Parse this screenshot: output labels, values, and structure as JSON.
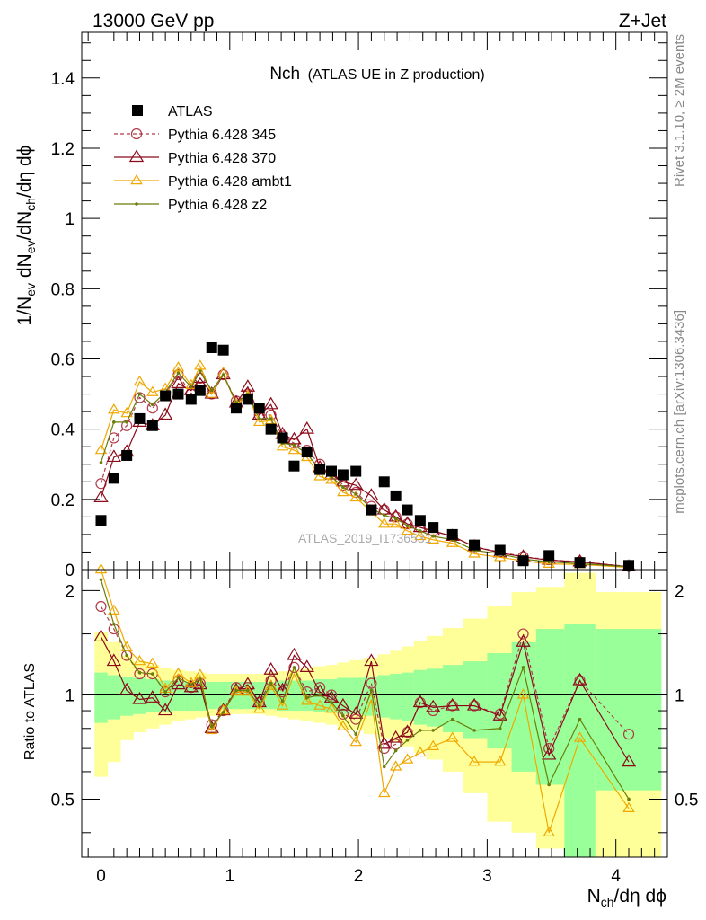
{
  "header": {
    "left": "13000 GeV pp",
    "right": "Z+Jet"
  },
  "side_labels": {
    "rivet": "Rivet 3.1.10, ≥ 2M events",
    "mcplots": "mcplots.cern.ch [arXiv:1306.3436]"
  },
  "watermark": "ATLAS_2019_I1736531",
  "colors": {
    "atlas": "#000000",
    "p345": "#b03a48",
    "p370": "#8b0a1a",
    "ambt1": "#f0a800",
    "z2": "#6b7d0a",
    "band_inner": "#99ff99",
    "band_outer": "#ffff99"
  },
  "chart_data": [
    {
      "type": "scatter",
      "title_main": "Nch",
      "title_sub": "(ATLAS UE in Z production)",
      "ylabel_main": "1/N",
      "ylabel_sub1": "ev",
      "ylabel_mid1": " dN",
      "ylabel_sub2": "ev",
      "ylabel_mid2": "/dN",
      "ylabel_sub3": "ch",
      "ylabel_tail": "/dη dϕ",
      "xlim": [
        -0.15,
        4.4
      ],
      "ylim": [
        0,
        1.53
      ],
      "xticks": [
        "0",
        "1",
        "2",
        "3",
        "4"
      ],
      "yticks": [
        "0",
        "0.2",
        "0.4",
        "0.6",
        "0.8",
        "1",
        "1.2",
        "1.4"
      ],
      "legend_position": "top-left",
      "legend": [
        "ATLAS",
        "Pythia 6.428 345",
        "Pythia 6.428 370",
        "Pythia 6.428 ambt1",
        "Pythia 6.428 z2"
      ],
      "x": [
        0.0,
        0.1,
        0.2,
        0.3,
        0.4,
        0.5,
        0.6,
        0.7,
        0.77,
        0.86,
        0.95,
        1.05,
        1.14,
        1.23,
        1.32,
        1.41,
        1.5,
        1.6,
        1.7,
        1.79,
        1.88,
        1.98,
        2.1,
        2.2,
        2.29,
        2.38,
        2.48,
        2.58,
        2.73,
        2.9,
        3.1,
        3.28,
        3.48,
        3.72,
        4.1
      ],
      "series": [
        {
          "name": "ATLAS",
          "values": [
            0.14,
            0.26,
            0.325,
            0.43,
            0.41,
            0.495,
            0.5,
            0.485,
            0.51,
            0.632,
            0.625,
            0.46,
            0.485,
            0.46,
            0.4,
            0.375,
            0.295,
            0.335,
            0.285,
            0.28,
            0.27,
            0.28,
            0.17,
            0.25,
            0.21,
            0.17,
            0.14,
            0.12,
            0.1,
            0.07,
            0.055,
            0.025,
            0.04,
            0.02,
            0.012
          ]
        },
        {
          "name": "Pythia 6.428 345",
          "values": [
            0.245,
            0.375,
            0.41,
            0.49,
            0.46,
            0.5,
            0.555,
            0.5,
            0.545,
            0.5,
            0.555,
            0.48,
            0.5,
            0.44,
            0.44,
            0.38,
            0.36,
            0.34,
            0.3,
            0.28,
            0.24,
            0.22,
            0.18,
            0.17,
            0.15,
            0.13,
            0.12,
            0.11,
            0.095,
            0.065,
            0.05,
            0.037,
            0.028,
            0.022,
            0.009
          ]
        },
        {
          "name": "Pythia 6.428 370",
          "values": [
            0.205,
            0.32,
            0.335,
            0.42,
            0.41,
            0.44,
            0.53,
            0.51,
            0.545,
            0.5,
            0.555,
            0.475,
            0.52,
            0.44,
            0.47,
            0.385,
            0.37,
            0.4,
            0.29,
            0.27,
            0.25,
            0.24,
            0.21,
            0.17,
            0.15,
            0.13,
            0.12,
            0.11,
            0.095,
            0.065,
            0.048,
            0.036,
            0.027,
            0.022,
            0.008
          ]
        },
        {
          "name": "Pythia 6.428 ambt1",
          "values": [
            0.34,
            0.455,
            0.445,
            0.535,
            0.505,
            0.515,
            0.575,
            0.525,
            0.58,
            0.5,
            0.56,
            0.47,
            0.495,
            0.42,
            0.425,
            0.35,
            0.34,
            0.32,
            0.265,
            0.255,
            0.22,
            0.205,
            0.165,
            0.13,
            0.13,
            0.11,
            0.095,
            0.085,
            0.075,
            0.045,
            0.035,
            0.025,
            0.016,
            0.015,
            0.006
          ]
        },
        {
          "name": "Pythia 6.428 z2",
          "values": [
            0.305,
            0.42,
            0.42,
            0.5,
            0.47,
            0.505,
            0.56,
            0.52,
            0.565,
            0.51,
            0.555,
            0.475,
            0.5,
            0.43,
            0.43,
            0.36,
            0.355,
            0.33,
            0.285,
            0.265,
            0.235,
            0.215,
            0.175,
            0.155,
            0.145,
            0.125,
            0.11,
            0.095,
            0.085,
            0.055,
            0.045,
            0.03,
            0.022,
            0.017,
            0.008
          ]
        }
      ]
    },
    {
      "type": "line",
      "ylabel": "Ratio to ATLAS",
      "xlabel_main": "N",
      "xlabel_sub": "ch",
      "xlabel_tail": "/dη dϕ",
      "xlim": [
        -0.15,
        4.4
      ],
      "ylim": [
        0.34,
        2.3
      ],
      "xticks": [
        "0",
        "1",
        "2",
        "3",
        "4"
      ],
      "yticks": [
        "0.5",
        "1",
        "2"
      ],
      "reference_line": 1,
      "x": [
        0.0,
        0.1,
        0.2,
        0.3,
        0.4,
        0.5,
        0.6,
        0.7,
        0.77,
        0.86,
        0.95,
        1.05,
        1.14,
        1.23,
        1.32,
        1.41,
        1.5,
        1.6,
        1.7,
        1.79,
        1.88,
        1.98,
        2.1,
        2.2,
        2.29,
        2.38,
        2.48,
        2.58,
        2.73,
        2.9,
        3.1,
        3.28,
        3.48,
        3.72,
        4.1
      ],
      "bands": {
        "edges": [
          -0.05,
          0.05,
          0.15,
          0.25,
          0.35,
          0.45,
          0.55,
          0.65,
          0.735,
          0.815,
          0.905,
          1.0,
          1.095,
          1.185,
          1.275,
          1.365,
          1.455,
          1.55,
          1.65,
          1.745,
          1.835,
          1.93,
          2.04,
          2.15,
          2.245,
          2.335,
          2.43,
          2.53,
          2.655,
          2.815,
          3.0,
          3.19,
          3.38,
          3.6,
          3.84,
          4.35
        ],
        "inner_lo": [
          0.83,
          0.85,
          0.87,
          0.88,
          0.89,
          0.89,
          0.9,
          0.9,
          0.9,
          0.91,
          0.91,
          0.91,
          0.91,
          0.91,
          0.91,
          0.9,
          0.9,
          0.9,
          0.89,
          0.89,
          0.88,
          0.88,
          0.87,
          0.86,
          0.85,
          0.84,
          0.82,
          0.81,
          0.78,
          0.75,
          0.7,
          0.6,
          0.55,
          0.34,
          0.53
        ],
        "inner_hi": [
          1.16,
          1.14,
          1.13,
          1.12,
          1.11,
          1.1,
          1.1,
          1.09,
          1.09,
          1.09,
          1.09,
          1.09,
          1.09,
          1.09,
          1.09,
          1.1,
          1.1,
          1.1,
          1.11,
          1.11,
          1.12,
          1.12,
          1.13,
          1.14,
          1.15,
          1.16,
          1.18,
          1.19,
          1.22,
          1.25,
          1.32,
          1.42,
          1.55,
          1.6,
          1.55
        ],
        "outer_lo": [
          0.58,
          0.64,
          0.74,
          0.78,
          0.8,
          0.82,
          0.84,
          0.85,
          0.86,
          0.87,
          0.87,
          0.88,
          0.88,
          0.88,
          0.87,
          0.86,
          0.85,
          0.84,
          0.83,
          0.82,
          0.8,
          0.79,
          0.77,
          0.75,
          0.73,
          0.71,
          0.68,
          0.65,
          0.6,
          0.52,
          0.43,
          0.4,
          0.36,
          0.34,
          0.34
        ],
        "outer_hi": [
          1.52,
          1.42,
          1.3,
          1.25,
          1.22,
          1.2,
          1.18,
          1.17,
          1.16,
          1.15,
          1.15,
          1.15,
          1.15,
          1.15,
          1.16,
          1.17,
          1.18,
          1.19,
          1.21,
          1.22,
          1.24,
          1.26,
          1.28,
          1.31,
          1.34,
          1.38,
          1.43,
          1.48,
          1.56,
          1.66,
          1.8,
          1.98,
          2.05,
          2.25,
          1.98
        ]
      },
      "series": [
        {
          "name": "Pythia 6.428 345",
          "values": [
            1.8,
            1.55,
            1.3,
            1.15,
            1.15,
            1.02,
            1.1,
            1.05,
            1.08,
            0.82,
            0.9,
            1.05,
            1.05,
            0.95,
            1.1,
            1.02,
            1.2,
            1.02,
            1.05,
            1.0,
            0.88,
            0.85,
            1.08,
            0.7,
            0.72,
            0.78,
            0.95,
            0.9,
            0.93,
            0.93,
            0.88,
            1.5,
            0.7,
            1.1,
            0.77
          ]
        },
        {
          "name": "Pythia 6.428 370",
          "values": [
            1.47,
            1.25,
            1.03,
            0.97,
            0.98,
            0.9,
            1.07,
            1.05,
            1.07,
            0.8,
            0.9,
            1.03,
            1.07,
            0.95,
            1.18,
            1.03,
            1.3,
            1.2,
            1.02,
            0.98,
            0.93,
            0.88,
            1.25,
            0.72,
            0.75,
            0.78,
            0.95,
            0.92,
            0.93,
            0.93,
            0.87,
            1.42,
            0.67,
            1.1,
            0.64
          ]
        },
        {
          "name": "Pythia 6.428 ambt1",
          "values": [
            2.3,
            1.75,
            1.37,
            1.25,
            1.23,
            1.04,
            1.15,
            1.08,
            1.14,
            0.79,
            0.9,
            1.02,
            1.02,
            0.91,
            1.06,
            0.93,
            1.15,
            0.96,
            0.93,
            0.91,
            0.81,
            0.73,
            0.97,
            0.52,
            0.62,
            0.65,
            0.68,
            0.71,
            0.75,
            0.64,
            0.64,
            1.0,
            0.4,
            0.75,
            0.47
          ]
        },
        {
          "name": "Pythia 6.428 z2",
          "values": [
            2.15,
            1.6,
            1.3,
            1.16,
            1.15,
            1.02,
            1.12,
            1.07,
            1.11,
            0.81,
            0.89,
            1.03,
            1.03,
            0.93,
            1.08,
            0.96,
            1.2,
            0.98,
            1.0,
            0.95,
            0.87,
            0.77,
            1.03,
            0.62,
            0.69,
            0.74,
            0.79,
            0.79,
            0.85,
            0.79,
            0.8,
            1.2,
            0.55,
            0.85,
            0.5
          ]
        }
      ]
    }
  ]
}
